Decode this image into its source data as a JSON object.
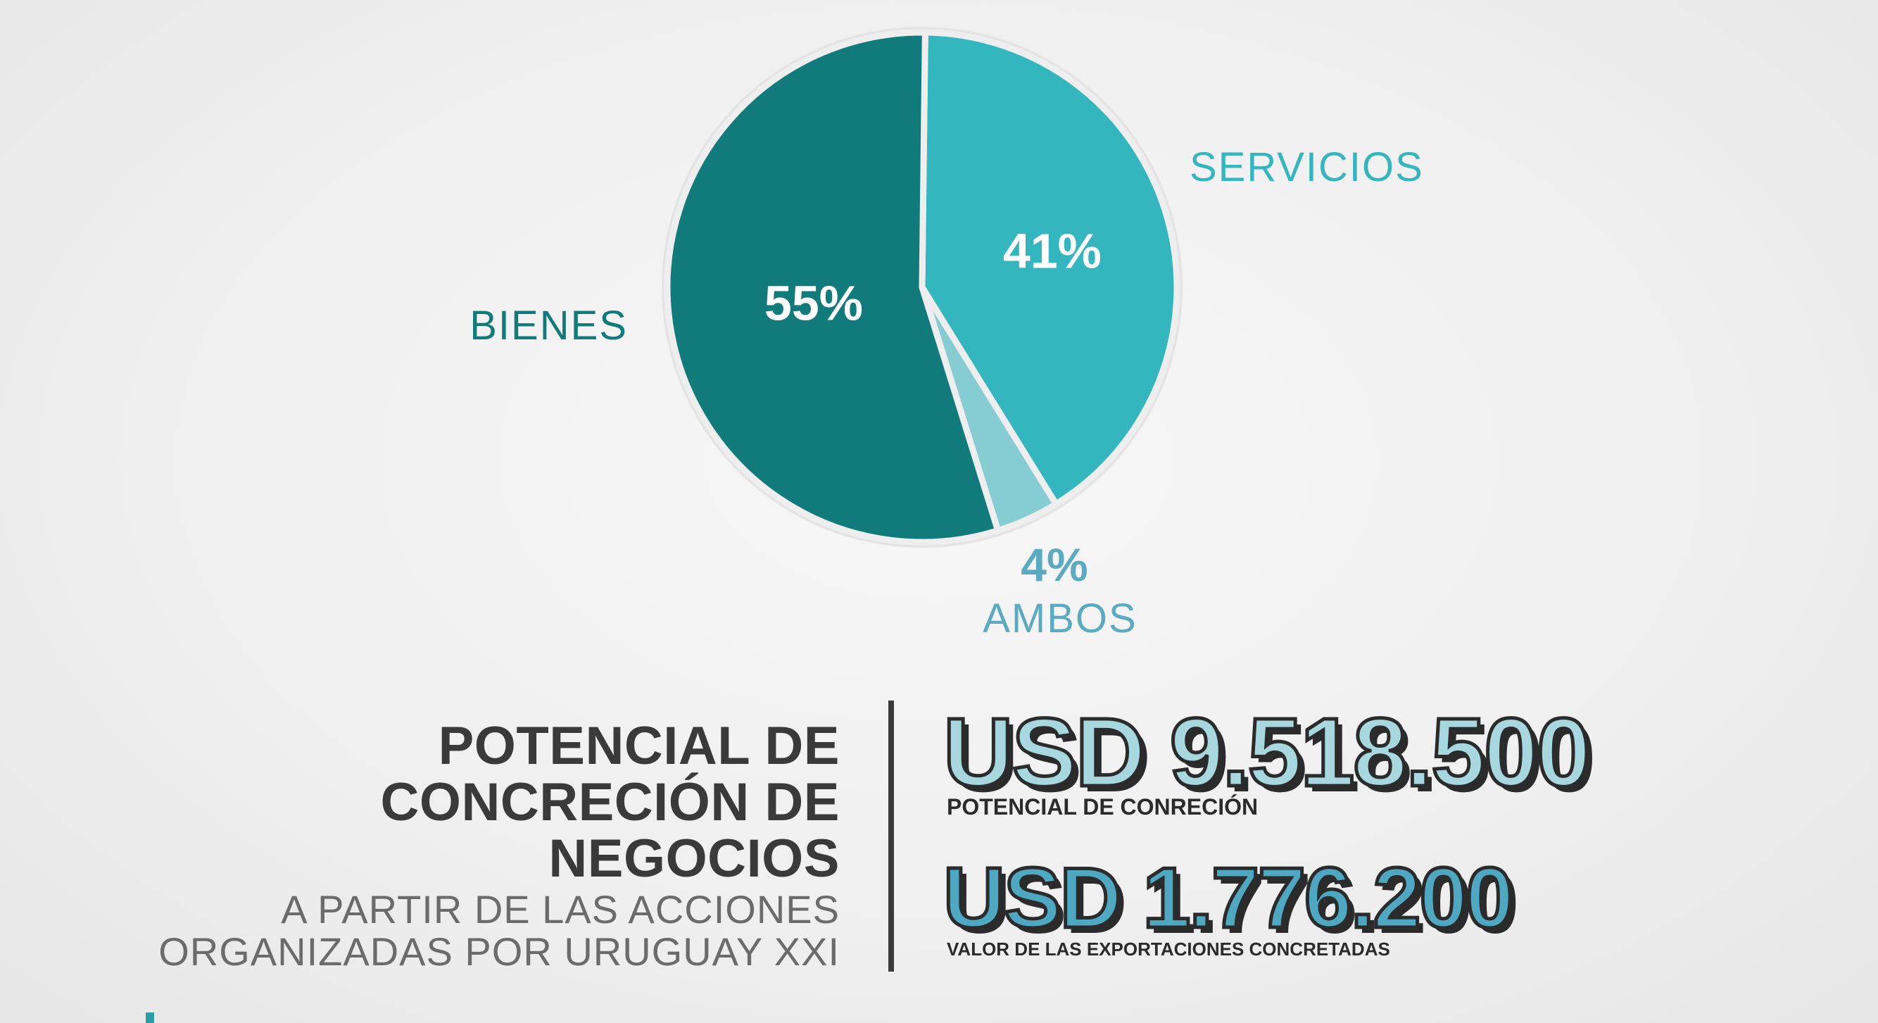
{
  "chart_data": {
    "type": "pie",
    "slices": [
      {
        "label": "SERVICIOS",
        "value": 41,
        "value_label": "41%",
        "color": "#33b6bd"
      },
      {
        "label": "AMBOS",
        "value": 4,
        "value_label": "4%",
        "color": "#85cdd3"
      },
      {
        "label": "BIENES",
        "value": 55,
        "value_label": "55%",
        "color": "#117b7c"
      }
    ],
    "label_colors": {
      "BIENES": "#117b7c",
      "SERVICIOS": "#33b6bd",
      "AMBOS": "#5aaac2"
    }
  },
  "heading": {
    "line1": "POTENCIAL DE",
    "line2": "CONCRECIÓN DE",
    "line3": "NEGOCIOS",
    "subtitle1": "A PARTIR DE LAS ACCIONES",
    "subtitle2": "ORGANIZADAS POR URUGUAY XXI"
  },
  "stats": [
    {
      "value": "USD 9.518.500",
      "caption": "POTENCIAL DE CONRECIÓN"
    },
    {
      "value": "USD 1.776.200",
      "caption": "VALOR DE LAS EXPORTACIONES CONCRETADAS"
    }
  ],
  "colors": {
    "accent": "#2a9da6",
    "dark": "#3a3a3a"
  }
}
